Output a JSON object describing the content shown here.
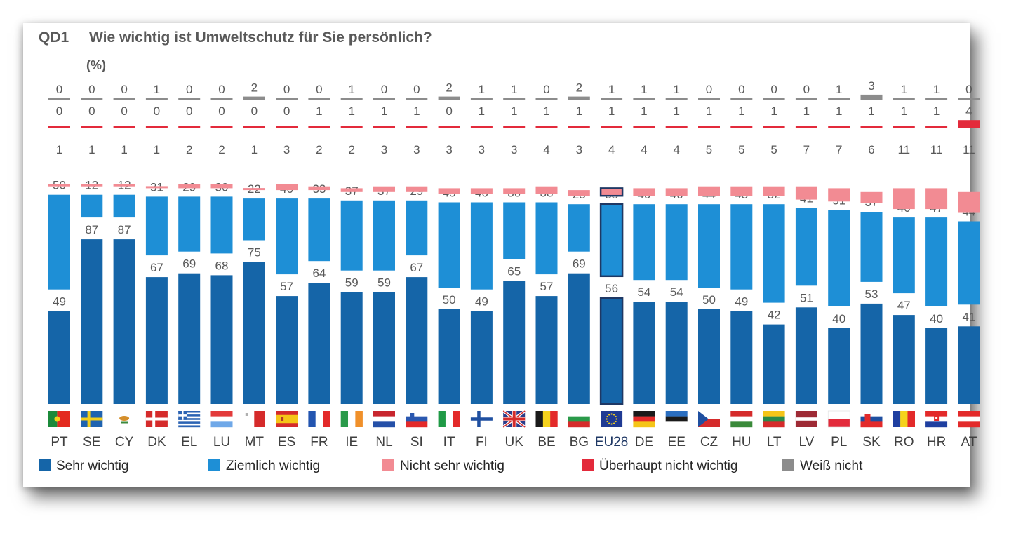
{
  "question": {
    "code": "QD1",
    "text": "Wie wichtig ist Umweltschutz für Sie persönlich?",
    "unit": "(%)"
  },
  "colors": {
    "sehr": "#1565a8",
    "ziemlich": "#1e8fd6",
    "nicht_sehr": "#f28b93",
    "ueberhaupt": "#e32a3b",
    "weiss": "#8c8c8c",
    "highlight_border": "#1f3864"
  },
  "chart_data": {
    "type": "bar",
    "stacked": true,
    "highlight": "EU28",
    "legend_position": "bottom",
    "categories": [
      "PT",
      "SE",
      "CY",
      "DK",
      "EL",
      "LU",
      "MT",
      "ES",
      "FR",
      "IE",
      "NL",
      "SI",
      "IT",
      "FI",
      "UK",
      "BE",
      "BG",
      "EU28",
      "DE",
      "EE",
      "CZ",
      "HU",
      "LT",
      "LV",
      "PL",
      "SK",
      "RO",
      "HR",
      "AT"
    ],
    "flags": [
      "portugal-flag-icon",
      "sweden-flag-icon",
      "cyprus-flag-icon",
      "denmark-flag-icon",
      "greece-flag-icon",
      "luxembourg-flag-icon",
      "malta-flag-icon",
      "spain-flag-icon",
      "france-flag-icon",
      "ireland-flag-icon",
      "netherlands-flag-icon",
      "slovenia-flag-icon",
      "italy-flag-icon",
      "finland-flag-icon",
      "uk-flag-icon",
      "belgium-flag-icon",
      "bulgaria-flag-icon",
      "eu-flag-icon",
      "germany-flag-icon",
      "estonia-flag-icon",
      "czechia-flag-icon",
      "hungary-flag-icon",
      "lithuania-flag-icon",
      "latvia-flag-icon",
      "poland-flag-icon",
      "slovakia-flag-icon",
      "romania-flag-icon",
      "croatia-flag-icon",
      "austria-flag-icon"
    ],
    "series": [
      {
        "name": "Sehr wichtig",
        "key": "sehr",
        "values": [
          49,
          87,
          87,
          67,
          69,
          68,
          75,
          57,
          64,
          59,
          59,
          67,
          50,
          49,
          65,
          57,
          69,
          56,
          54,
          54,
          50,
          49,
          42,
          51,
          40,
          53,
          47,
          40,
          41
        ]
      },
      {
        "name": "Ziemlich wichtig",
        "key": "ziemlich",
        "values": [
          50,
          12,
          12,
          31,
          29,
          30,
          22,
          40,
          33,
          37,
          37,
          29,
          45,
          46,
          30,
          38,
          25,
          38,
          40,
          40,
          44,
          45,
          52,
          41,
          51,
          37,
          40,
          47,
          44
        ]
      },
      {
        "name": "Nicht sehr wichtig",
        "key": "nicht_sehr",
        "values": [
          1,
          1,
          1,
          1,
          2,
          2,
          1,
          3,
          2,
          2,
          3,
          3,
          3,
          3,
          3,
          4,
          3,
          4,
          4,
          4,
          5,
          5,
          5,
          7,
          7,
          6,
          11,
          11,
          11
        ]
      },
      {
        "name": "Überhaupt nicht wichtig",
        "key": "ueberhaupt",
        "values": [
          0,
          0,
          0,
          0,
          0,
          0,
          0,
          0,
          1,
          1,
          1,
          1,
          0,
          1,
          1,
          1,
          1,
          1,
          1,
          1,
          1,
          1,
          1,
          1,
          1,
          1,
          1,
          1,
          4
        ]
      },
      {
        "name": "Weiß nicht",
        "key": "weiss",
        "values": [
          0,
          0,
          0,
          1,
          0,
          0,
          2,
          0,
          0,
          1,
          0,
          0,
          2,
          1,
          1,
          0,
          2,
          1,
          1,
          1,
          0,
          0,
          0,
          0,
          1,
          3,
          1,
          1,
          0
        ]
      }
    ]
  }
}
